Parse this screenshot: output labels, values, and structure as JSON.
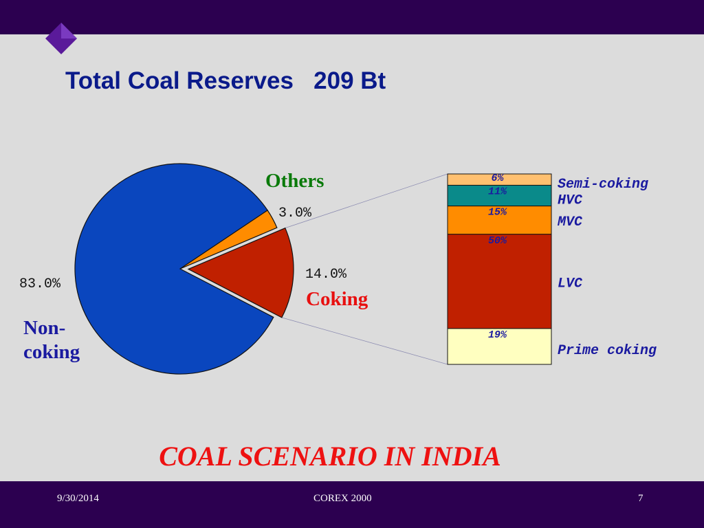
{
  "slide": {
    "title": "Total Coal Reserves   209 Bt",
    "subtitle": "COAL SCENARIO IN INDIA",
    "footer": {
      "date": "9/30/2014",
      "center": "COREX 2000",
      "page": "7"
    }
  },
  "colors": {
    "band": "#2c0050",
    "background": "#dcdcdc",
    "title": "#0a1a8a",
    "subtitle": "#ee1111"
  },
  "chart_data": [
    {
      "type": "pie",
      "slices": [
        {
          "name": "Non-\ncoking",
          "value": 83.0,
          "value_label": "83.0%",
          "color": "#0a46be",
          "label_color": "#1a1aa0",
          "exploded": false
        },
        {
          "name": "Others",
          "value": 3.0,
          "value_label": "3.0%",
          "color": "#ff8c00",
          "label_color": "#0a7a0a",
          "exploded": false
        },
        {
          "name": "Coking",
          "value": 14.0,
          "value_label": "14.0%",
          "color": "#c02000",
          "label_color": "#e81010",
          "exploded": true
        }
      ]
    },
    {
      "type": "bar",
      "stacked": true,
      "breakdown_of": "Coking",
      "series": [
        {
          "name": "Semi-coking",
          "value": 6,
          "value_label": "6%",
          "color": "#ffc070"
        },
        {
          "name": "HVC",
          "value": 11,
          "value_label": "11%",
          "color": "#0a8a8a"
        },
        {
          "name": "MVC",
          "value": 15,
          "value_label": "15%",
          "color": "#ff8c00"
        },
        {
          "name": "LVC",
          "value": 50,
          "value_label": "50%",
          "color": "#c02000"
        },
        {
          "name": "Prime coking",
          "value": 19,
          "value_label": "19%",
          "color": "#ffffc0"
        }
      ]
    }
  ]
}
